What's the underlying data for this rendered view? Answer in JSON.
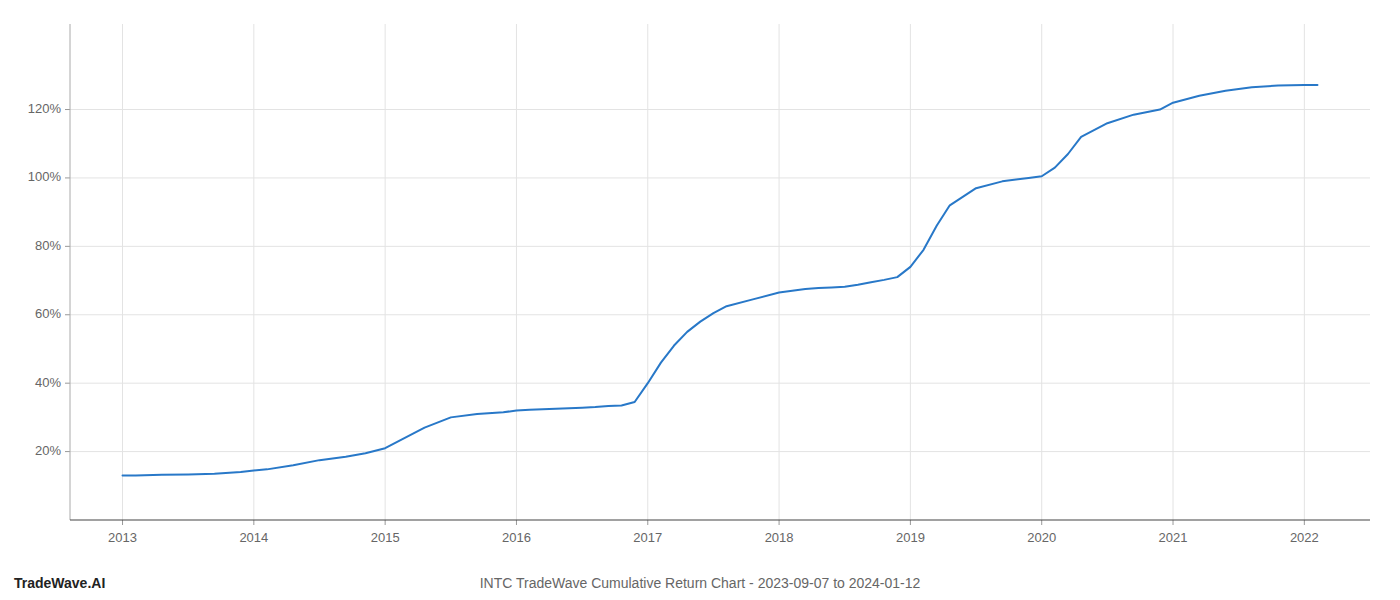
{
  "chart_data": {
    "type": "line",
    "title": "INTC TradeWave Cumulative Return Chart - 2023-09-07 to 2024-01-12",
    "annotations": [
      "TradeWave.AI"
    ],
    "color": "#2878c8",
    "x": [
      2013.0,
      2013.1,
      2013.3,
      2013.5,
      2013.7,
      2013.9,
      2014.0,
      2014.1,
      2014.3,
      2014.5,
      2014.7,
      2014.85,
      2015.0,
      2015.15,
      2015.3,
      2015.5,
      2015.7,
      2015.9,
      2016.0,
      2016.1,
      2016.3,
      2016.5,
      2016.6,
      2016.7,
      2016.8,
      2016.9,
      2017.0,
      2017.1,
      2017.2,
      2017.3,
      2017.4,
      2017.5,
      2017.6,
      2017.8,
      2018.0,
      2018.1,
      2018.2,
      2018.3,
      2018.4,
      2018.5,
      2018.6,
      2018.7,
      2018.8,
      2018.9,
      2019.0,
      2019.1,
      2019.2,
      2019.3,
      2019.5,
      2019.7,
      2019.9,
      2020.0,
      2020.1,
      2020.2,
      2020.3,
      2020.5,
      2020.7,
      2020.9,
      2021.0,
      2021.2,
      2021.4,
      2021.6,
      2021.8,
      2022.0,
      2022.1
    ],
    "values": [
      13.0,
      13.0,
      13.2,
      13.3,
      13.5,
      14.0,
      14.5,
      14.8,
      16.0,
      17.5,
      18.5,
      19.5,
      21.0,
      24.0,
      27.0,
      30.0,
      31.0,
      31.5,
      32.0,
      32.2,
      32.5,
      32.8,
      33.0,
      33.3,
      33.5,
      34.5,
      40.0,
      46.0,
      51.0,
      55.0,
      58.0,
      60.5,
      62.5,
      64.5,
      66.5,
      67.0,
      67.5,
      67.8,
      68.0,
      68.2,
      68.8,
      69.5,
      70.2,
      71.0,
      74.0,
      79.0,
      86.0,
      92.0,
      97.0,
      99.0,
      100.0,
      100.5,
      103.0,
      107.0,
      112.0,
      116.0,
      118.5,
      120.0,
      122.0,
      124.0,
      125.5,
      126.5,
      127.0,
      127.2,
      127.2
    ],
    "xlim": [
      2012.6,
      2022.5
    ],
    "ylim": [
      0,
      145
    ],
    "xticks": [
      2013,
      2014,
      2015,
      2016,
      2017,
      2018,
      2019,
      2020,
      2021,
      2022
    ],
    "yticks": [
      {
        "value": 20,
        "label": "20%"
      },
      {
        "value": 40,
        "label": "40%"
      },
      {
        "value": 60,
        "label": "60%"
      },
      {
        "value": 80,
        "label": "80%"
      },
      {
        "value": 100,
        "label": "100%"
      },
      {
        "value": 120,
        "label": "120%"
      }
    ],
    "grid": true
  }
}
